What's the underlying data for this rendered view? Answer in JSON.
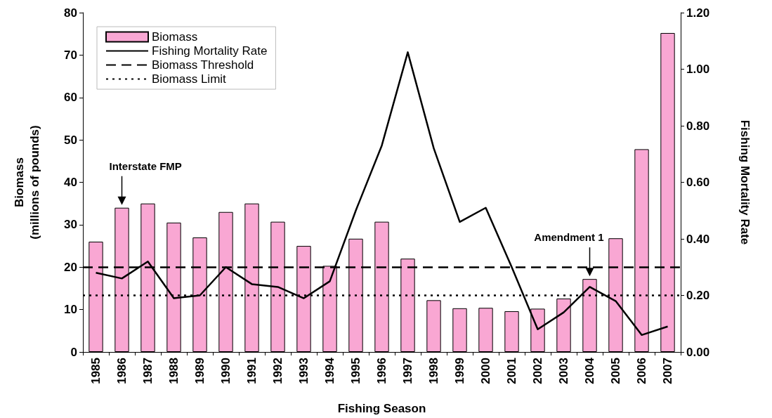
{
  "chart_data": {
    "type": "bar",
    "xlabel": "Fishing Season",
    "ylabel": "Biomass\n(millions of pounds)",
    "y2label": "Fishing Mortality Rate",
    "categories": [
      "1985",
      "1986",
      "1987",
      "1988",
      "1989",
      "1990",
      "1991",
      "1992",
      "1993",
      "1994",
      "1995",
      "1996",
      "1997",
      "1998",
      "1999",
      "2000",
      "2001",
      "2002",
      "2003",
      "2004",
      "2005",
      "2006",
      "2007"
    ],
    "series": [
      {
        "name": "Biomass",
        "color": "#f9a7d3",
        "values": [
          26,
          34,
          35,
          30.5,
          27,
          33,
          35,
          30.7,
          25,
          20.3,
          26.7,
          30.7,
          22,
          12.2,
          10.3,
          10.4,
          9.6,
          10.2,
          12.6,
          17.2,
          26.8,
          47.8,
          75.2
        ]
      },
      {
        "name": "Fishing Mortality Rate",
        "type": "line",
        "axis": "y2",
        "color": "#000000",
        "line_style": "solid",
        "marker": "none",
        "values": [
          0.28,
          0.26,
          0.32,
          0.19,
          0.2,
          0.3,
          0.24,
          0.23,
          0.19,
          0.25,
          0.5,
          0.73,
          1.06,
          0.72,
          0.46,
          0.51,
          0.3,
          0.08,
          0.14,
          0.23,
          0.18,
          0.06,
          0.09
        ]
      }
    ],
    "ref_lines": [
      {
        "axis": "y",
        "value": 20,
        "label": "Biomass Threshold",
        "color": "#000000",
        "line_style": "dashed"
      },
      {
        "axis": "y",
        "value": 13.3,
        "label": "Biomass Limit",
        "color": "#000000",
        "line_style": "dotted"
      }
    ],
    "annotations": [
      {
        "text": "Interstate FMP",
        "x": "1986",
        "y": 34
      },
      {
        "text": "Amendment 1",
        "x": "2004",
        "y": 17.2
      }
    ],
    "ylim": [
      0,
      80
    ],
    "yticks": [
      0,
      10,
      20,
      30,
      40,
      50,
      60,
      70,
      80
    ],
    "y2lim": [
      0,
      1.2
    ],
    "y2ticks": [
      {
        "value": 0,
        "label": "0.00"
      },
      {
        "value": 0.2,
        "label": "0.20"
      },
      {
        "value": 0.4,
        "label": "0.40"
      },
      {
        "value": 0.6,
        "label": "0.60"
      },
      {
        "value": 0.8,
        "label": "0.80"
      },
      {
        "value": 1,
        "label": "1.00"
      },
      {
        "value": 1.2,
        "label": "1.20"
      }
    ],
    "grid": false,
    "legend": "top left"
  }
}
